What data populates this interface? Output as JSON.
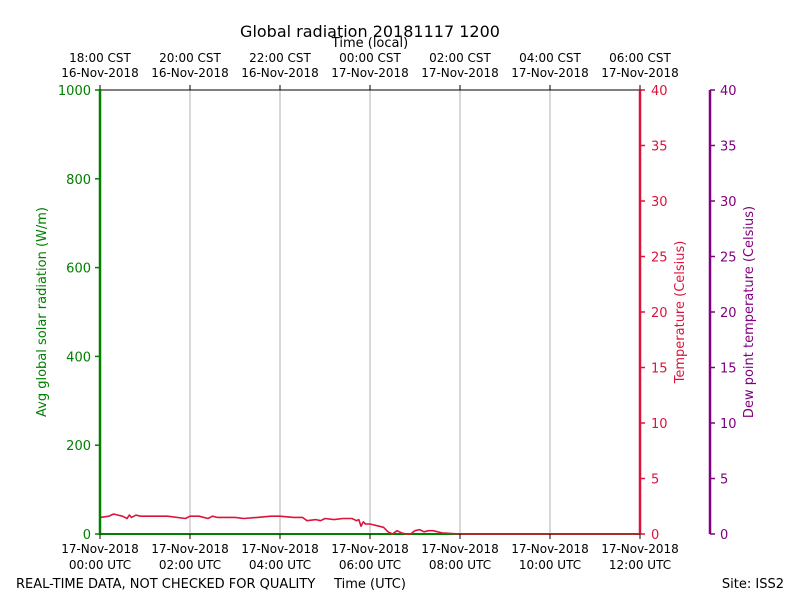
{
  "chart_data": {
    "type": "line",
    "title": "Global radiation 20181117 1200",
    "top_axis_label": "Time (local)",
    "xlabel": "Time (UTC)",
    "ylabel_left": "Avg global solar radiation (W/m)",
    "ylabel_right1": "Temperature (Celsius)",
    "ylabel_right2": "Dew point temperature (Celsius)",
    "footer_left": "REAL-TIME DATA, NOT CHECKED FOR QUALITY",
    "footer_right": "Site: ISS2",
    "xlim_hours_utc": [
      0,
      12
    ],
    "ylim_left": [
      0,
      1000
    ],
    "ylim_right1": [
      0,
      40
    ],
    "ylim_right2": [
      0,
      40
    ],
    "left_ticks": [
      "0",
      "200",
      "400",
      "600",
      "800",
      "1000"
    ],
    "right1_ticks": [
      "0",
      "5",
      "10",
      "15",
      "20",
      "25",
      "30",
      "35",
      "40"
    ],
    "right2_ticks": [
      "0",
      "5",
      "10",
      "15",
      "20",
      "25",
      "30",
      "35",
      "40"
    ],
    "bottom_ticks": [
      {
        "h": 0,
        "date": "17-Nov-2018",
        "time": "00:00 UTC"
      },
      {
        "h": 2,
        "date": "17-Nov-2018",
        "time": "02:00 UTC"
      },
      {
        "h": 4,
        "date": "17-Nov-2018",
        "time": "04:00 UTC"
      },
      {
        "h": 6,
        "date": "17-Nov-2018",
        "time": "06:00 UTC"
      },
      {
        "h": 8,
        "date": "17-Nov-2018",
        "time": "08:00 UTC"
      },
      {
        "h": 10,
        "date": "17-Nov-2018",
        "time": "10:00 UTC"
      },
      {
        "h": 12,
        "date": "17-Nov-2018",
        "time": "12:00 UTC"
      }
    ],
    "top_ticks": [
      {
        "h": 0,
        "time": "18:00 CST",
        "date": "16-Nov-2018"
      },
      {
        "h": 2,
        "time": "20:00 CST",
        "date": "16-Nov-2018"
      },
      {
        "h": 4,
        "time": "22:00 CST",
        "date": "16-Nov-2018"
      },
      {
        "h": 6,
        "time": "00:00 CST",
        "date": "17-Nov-2018"
      },
      {
        "h": 8,
        "time": "02:00 CST",
        "date": "17-Nov-2018"
      },
      {
        "h": 10,
        "time": "04:00 CST",
        "date": "17-Nov-2018"
      },
      {
        "h": 12,
        "time": "06:00 CST",
        "date": "17-Nov-2018"
      }
    ],
    "grid": "vertical",
    "colors": {
      "radiation": "#008000",
      "temperature": "#dc143c",
      "dewpoint": "#800080",
      "grid": "#b0b0b0"
    },
    "series": [
      {
        "axis": "left",
        "color": "#008000",
        "x": [
          0,
          12
        ],
        "y": [
          0,
          0
        ]
      },
      {
        "axis": "right1",
        "color": "#dc143c",
        "x": [
          0,
          0.2,
          0.3,
          0.4,
          0.5,
          0.6,
          0.65,
          0.7,
          0.8,
          0.9,
          1.0,
          1.5,
          1.9,
          2.0,
          2.2,
          2.4,
          2.5,
          2.6,
          2.8,
          3.0,
          3.2,
          3.5,
          3.8,
          4.0,
          4.3,
          4.5,
          4.6,
          4.8,
          4.9,
          5.0,
          5.2,
          5.4,
          5.6,
          5.7,
          5.75,
          5.8,
          5.85,
          5.9,
          6.0,
          6.2,
          6.3,
          6.4,
          6.5,
          6.6,
          6.7,
          6.8,
          6.9,
          7.0,
          7.1,
          7.2,
          7.3,
          7.4,
          7.6,
          8.0,
          9.0,
          10.0,
          11.0,
          12.0
        ],
        "y": [
          1.5,
          1.6,
          1.8,
          1.7,
          1.6,
          1.4,
          1.7,
          1.5,
          1.7,
          1.6,
          1.6,
          1.6,
          1.4,
          1.6,
          1.6,
          1.4,
          1.6,
          1.5,
          1.5,
          1.5,
          1.4,
          1.5,
          1.6,
          1.6,
          1.5,
          1.5,
          1.2,
          1.3,
          1.2,
          1.4,
          1.3,
          1.4,
          1.4,
          1.2,
          1.3,
          0.7,
          1.1,
          0.9,
          0.9,
          0.7,
          0.6,
          0.2,
          0.0,
          0.3,
          0.1,
          0.0,
          0.0,
          0.3,
          0.4,
          0.2,
          0.3,
          0.3,
          0.1,
          0.0,
          0.0,
          0.0,
          0.0,
          0.0
        ]
      }
    ]
  }
}
